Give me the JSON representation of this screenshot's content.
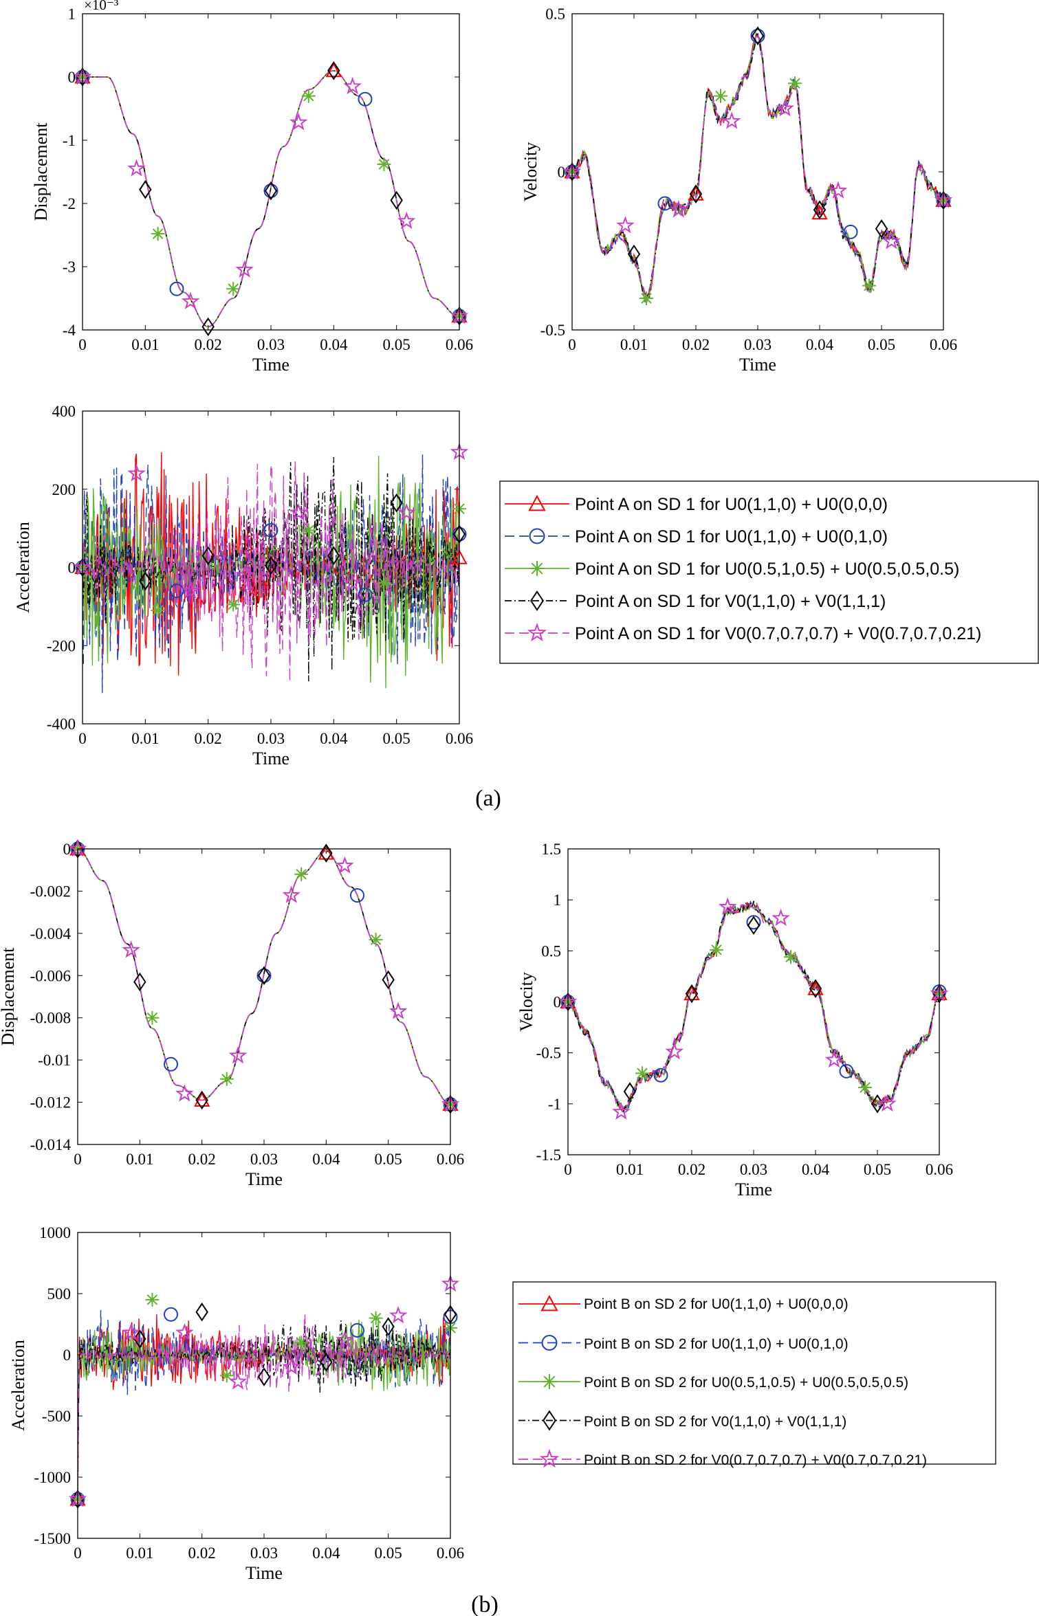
{
  "captions": {
    "a": "(a)",
    "b": "(b)"
  },
  "chart_data": [
    {
      "id": "a-disp",
      "type": "line",
      "xlabel": "Time",
      "ylabel": "Displacement",
      "xlim": [
        0,
        0.06
      ],
      "ylim": [
        -4,
        1
      ],
      "exponent": "×10⁻³",
      "xticks": [
        0,
        0.01,
        0.02,
        0.03,
        0.04,
        0.05,
        0.06
      ],
      "xtick_labels": [
        "0",
        "0.01",
        "0.02",
        "0.03",
        "0.04",
        "0.05",
        "0.06"
      ],
      "yticks": [
        -4,
        -3,
        -2,
        -1,
        0,
        1
      ],
      "ytick_labels": [
        "-4",
        "-3",
        "-2",
        "-1",
        "0",
        "1"
      ],
      "curve": {
        "kind": "smooth",
        "x": [
          0,
          0.004,
          0.008,
          0.012,
          0.016,
          0.02,
          0.024,
          0.028,
          0.032,
          0.036,
          0.04,
          0.044,
          0.048,
          0.052,
          0.056,
          0.06
        ],
        "y": [
          0,
          0,
          -0.9,
          -2.2,
          -3.4,
          -3.95,
          -3.5,
          -2.4,
          -1.1,
          -0.2,
          0.1,
          -0.3,
          -1.3,
          -2.6,
          -3.5,
          -3.8
        ]
      },
      "marker_points": [
        {
          "series": 0,
          "x": [
            0,
            0.04,
            0.06
          ],
          "y": [
            0,
            0.1,
            -3.78
          ]
        },
        {
          "series": 1,
          "x": [
            0,
            0.015,
            0.03,
            0.045,
            0.06
          ],
          "y": [
            0,
            -3.35,
            -1.8,
            -0.35,
            -3.78
          ]
        },
        {
          "series": 2,
          "x": [
            0,
            0.012,
            0.024,
            0.036,
            0.048,
            0.06
          ],
          "y": [
            0,
            -2.48,
            -3.35,
            -0.3,
            -1.38,
            -3.78
          ]
        },
        {
          "series": 3,
          "x": [
            0,
            0.01,
            0.02,
            0.03,
            0.04,
            0.05,
            0.06
          ],
          "y": [
            0,
            -1.78,
            -3.95,
            -1.8,
            0.1,
            -1.95,
            -3.78
          ]
        },
        {
          "series": 4,
          "x": [
            0,
            0.0086,
            0.0172,
            0.0258,
            0.0344,
            0.043,
            0.0516,
            0.06
          ],
          "y": [
            0,
            -1.45,
            -3.55,
            -3.05,
            -0.72,
            -0.15,
            -2.28,
            -3.78
          ]
        }
      ]
    },
    {
      "id": "a-vel",
      "type": "line",
      "xlabel": "Time",
      "ylabel": "Velocity",
      "xlim": [
        0,
        0.06
      ],
      "ylim": [
        -0.5,
        0.5
      ],
      "xticks": [
        0,
        0.01,
        0.02,
        0.03,
        0.04,
        0.05,
        0.06
      ],
      "xtick_labels": [
        "0",
        "0.01",
        "0.02",
        "0.03",
        "0.04",
        "0.05",
        "0.06"
      ],
      "yticks": [
        -0.5,
        0,
        0.5
      ],
      "ytick_labels": [
        "-0.5",
        "0",
        "0.5"
      ],
      "curve": {
        "kind": "jagged",
        "seed": 7,
        "noise": 0.018,
        "x": [
          0,
          0.002,
          0.005,
          0.008,
          0.01,
          0.012,
          0.015,
          0.018,
          0.02,
          0.022,
          0.024,
          0.026,
          0.028,
          0.03,
          0.032,
          0.034,
          0.036,
          0.038,
          0.04,
          0.042,
          0.044,
          0.046,
          0.048,
          0.05,
          0.052,
          0.054,
          0.056,
          0.058,
          0.06
        ],
        "y": [
          0,
          0.05,
          -0.25,
          -0.2,
          -0.28,
          -0.4,
          -0.1,
          -0.12,
          -0.07,
          0.25,
          0.16,
          0.22,
          0.3,
          0.43,
          0.18,
          0.2,
          0.28,
          -0.05,
          -0.12,
          -0.05,
          -0.2,
          -0.25,
          -0.37,
          -0.2,
          -0.2,
          -0.3,
          0.02,
          -0.05,
          -0.09
        ]
      },
      "marker_points": [
        {
          "series": 0,
          "x": [
            0,
            0.02,
            0.04,
            0.06
          ],
          "y": [
            0,
            -0.07,
            -0.13,
            -0.09
          ]
        },
        {
          "series": 1,
          "x": [
            0,
            0.015,
            0.03,
            0.045,
            0.06
          ],
          "y": [
            0,
            -0.1,
            0.43,
            -0.19,
            -0.09
          ]
        },
        {
          "series": 2,
          "x": [
            0,
            0.012,
            0.024,
            0.036,
            0.048,
            0.06
          ],
          "y": [
            0,
            -0.4,
            0.24,
            0.28,
            -0.36,
            -0.09
          ]
        },
        {
          "series": 3,
          "x": [
            0,
            0.01,
            0.02,
            0.03,
            0.04,
            0.05,
            0.06
          ],
          "y": [
            0,
            -0.26,
            -0.07,
            0.43,
            -0.12,
            -0.18,
            -0.09
          ]
        },
        {
          "series": 4,
          "x": [
            0,
            0.0086,
            0.0172,
            0.0258,
            0.0344,
            0.043,
            0.0516,
            0.06
          ],
          "y": [
            0,
            -0.17,
            -0.12,
            0.16,
            0.2,
            -0.06,
            -0.22,
            -0.09
          ]
        }
      ]
    },
    {
      "id": "a-acc",
      "type": "line",
      "xlabel": "Time",
      "ylabel": "Acceleration",
      "xlim": [
        0,
        0.06
      ],
      "ylim": [
        -400,
        400
      ],
      "xticks": [
        0,
        0.01,
        0.02,
        0.03,
        0.04,
        0.05,
        0.06
      ],
      "xtick_labels": [
        "0",
        "0.01",
        "0.02",
        "0.03",
        "0.04",
        "0.05",
        "0.06"
      ],
      "yticks": [
        -400,
        -200,
        0,
        200,
        400
      ],
      "ytick_labels": [
        "-400",
        "-200",
        "0",
        "200",
        "400"
      ],
      "curve": {
        "kind": "noise",
        "seed": 11,
        "amplitude": 320,
        "spread": 150,
        "start": 0
      },
      "marker_points": [
        {
          "series": 0,
          "x": [
            0,
            0.06
          ],
          "y": [
            0,
            25
          ]
        },
        {
          "series": 1,
          "x": [
            0,
            0.015,
            0.03,
            0.045,
            0.06
          ],
          "y": [
            0,
            -60,
            95,
            -70,
            85
          ]
        },
        {
          "series": 2,
          "x": [
            0,
            0.012,
            0.024,
            0.036,
            0.048,
            0.06
          ],
          "y": [
            0,
            -110,
            -95,
            95,
            -40,
            150
          ]
        },
        {
          "series": 3,
          "x": [
            0,
            0.01,
            0.02,
            0.03,
            0.04,
            0.05,
            0.06
          ],
          "y": [
            0,
            -35,
            30,
            5,
            30,
            165,
            85
          ]
        },
        {
          "series": 4,
          "x": [
            0,
            0.0086,
            0.0172,
            0.0258,
            0.0344,
            0.043,
            0.0516,
            0.06
          ],
          "y": [
            0,
            240,
            -60,
            -20,
            140,
            -40,
            140,
            295
          ]
        }
      ]
    },
    {
      "id": "b-disp",
      "type": "line",
      "xlabel": "Time",
      "ylabel": "Displacement",
      "xlim": [
        0,
        0.06
      ],
      "ylim": [
        -0.014,
        0
      ],
      "xticks": [
        0,
        0.01,
        0.02,
        0.03,
        0.04,
        0.05,
        0.06
      ],
      "xtick_labels": [
        "0",
        "0.01",
        "0.02",
        "0.03",
        "0.04",
        "0.05",
        "0.06"
      ],
      "yticks": [
        -0.014,
        -0.012,
        -0.01,
        -0.008,
        -0.006,
        -0.004,
        -0.002,
        0
      ],
      "ytick_labels": [
        "-0.014",
        "-0.012",
        "-0.01",
        "-0.008",
        "-0.006",
        "-0.004",
        "-0.002",
        "0"
      ],
      "curve": {
        "kind": "smooth",
        "x": [
          0,
          0.004,
          0.008,
          0.012,
          0.016,
          0.02,
          0.024,
          0.028,
          0.032,
          0.036,
          0.04,
          0.044,
          0.048,
          0.052,
          0.056,
          0.06
        ],
        "y": [
          0,
          -0.0015,
          -0.0045,
          -0.0085,
          -0.0112,
          -0.0119,
          -0.011,
          -0.0078,
          -0.004,
          -0.0012,
          -0.0001,
          -0.0018,
          -0.0045,
          -0.0082,
          -0.0108,
          -0.0121
        ]
      },
      "marker_points": [
        {
          "series": 0,
          "x": [
            0,
            0.02,
            0.04,
            0.06
          ],
          "y": [
            0,
            -0.0119,
            -0.0002,
            -0.0121
          ]
        },
        {
          "series": 1,
          "x": [
            0,
            0.015,
            0.03,
            0.045,
            0.06
          ],
          "y": [
            0,
            -0.0102,
            -0.006,
            -0.0022,
            -0.0121
          ]
        },
        {
          "series": 2,
          "x": [
            0,
            0.012,
            0.024,
            0.036,
            0.048,
            0.06
          ],
          "y": [
            0,
            -0.008,
            -0.0109,
            -0.0012,
            -0.0043,
            -0.0121
          ]
        },
        {
          "series": 3,
          "x": [
            0,
            0.01,
            0.02,
            0.03,
            0.04,
            0.05,
            0.06
          ],
          "y": [
            0,
            -0.0063,
            -0.0119,
            -0.006,
            -0.0002,
            -0.0062,
            -0.0121
          ]
        },
        {
          "series": 4,
          "x": [
            0,
            0.0086,
            0.0172,
            0.0258,
            0.0344,
            0.043,
            0.0516,
            0.06
          ],
          "y": [
            0,
            -0.0048,
            -0.0116,
            -0.0098,
            -0.0022,
            -0.0008,
            -0.0077,
            -0.0121
          ]
        }
      ]
    },
    {
      "id": "b-vel",
      "type": "line",
      "xlabel": "Time",
      "ylabel": "Velocity",
      "xlim": [
        0,
        0.06
      ],
      "ylim": [
        -1.5,
        1.5
      ],
      "xticks": [
        0,
        0.01,
        0.02,
        0.03,
        0.04,
        0.05,
        0.06
      ],
      "xtick_labels": [
        "0",
        "0.01",
        "0.02",
        "0.03",
        "0.04",
        "0.05",
        "0.06"
      ],
      "yticks": [
        -1.5,
        -1,
        -0.5,
        0,
        0.5,
        1,
        1.5
      ],
      "ytick_labels": [
        "-1.5",
        "-1",
        "-0.5",
        "0",
        "0.5",
        "1",
        "1.5"
      ],
      "curve": {
        "kind": "jagged",
        "seed": 3,
        "noise": 0.04,
        "x": [
          0,
          0.003,
          0.006,
          0.009,
          0.012,
          0.015,
          0.018,
          0.02,
          0.023,
          0.026,
          0.03,
          0.032,
          0.036,
          0.04,
          0.043,
          0.046,
          0.05,
          0.052,
          0.055,
          0.058,
          0.06
        ],
        "y": [
          0,
          -0.3,
          -0.8,
          -1.05,
          -0.75,
          -0.7,
          -0.35,
          0.1,
          0.45,
          0.9,
          0.95,
          0.8,
          0.45,
          0.15,
          -0.5,
          -0.7,
          -1.0,
          -0.95,
          -0.5,
          -0.35,
          0.1
        ]
      },
      "marker_points": [
        {
          "series": 0,
          "x": [
            0,
            0.02,
            0.04,
            0.06
          ],
          "y": [
            0,
            0.08,
            0.13,
            0.08
          ]
        },
        {
          "series": 1,
          "x": [
            0,
            0.015,
            0.03,
            0.045,
            0.06
          ],
          "y": [
            0,
            -0.72,
            0.78,
            -0.68,
            0.1
          ]
        },
        {
          "series": 2,
          "x": [
            0,
            0.012,
            0.024,
            0.036,
            0.048,
            0.06
          ],
          "y": [
            0,
            -0.7,
            0.51,
            0.44,
            -0.84,
            0.08
          ]
        },
        {
          "series": 3,
          "x": [
            0,
            0.01,
            0.02,
            0.03,
            0.04,
            0.05,
            0.06
          ],
          "y": [
            0,
            -0.88,
            0.08,
            0.75,
            0.13,
            -1.0,
            0.08
          ]
        },
        {
          "series": 4,
          "x": [
            0,
            0.0086,
            0.0172,
            0.0258,
            0.0344,
            0.043,
            0.0516,
            0.06
          ],
          "y": [
            0,
            -1.08,
            -0.49,
            0.93,
            0.82,
            -0.57,
            -1.0,
            0.08
          ]
        }
      ]
    },
    {
      "id": "b-acc",
      "type": "line",
      "xlabel": "Time",
      "ylabel": "Acceleration",
      "xlim": [
        0,
        0.06
      ],
      "ylim": [
        -1500,
        1000
      ],
      "xticks": [
        0,
        0.01,
        0.02,
        0.03,
        0.04,
        0.05,
        0.06
      ],
      "xtick_labels": [
        "0",
        "0.01",
        "0.02",
        "0.03",
        "0.04",
        "0.05",
        "0.06"
      ],
      "yticks": [
        -1500,
        -1000,
        -500,
        0,
        500,
        1000
      ],
      "ytick_labels": [
        "-1500",
        "-1000",
        "-500",
        "0",
        "500",
        "1000"
      ],
      "curve": {
        "kind": "noise",
        "seed": 5,
        "amplitude": 350,
        "spread": 200,
        "start": -1180
      },
      "marker_points": [
        {
          "series": 0,
          "x": [
            0
          ],
          "y": [
            -1180
          ]
        },
        {
          "series": 1,
          "x": [
            0,
            0.015,
            0.045,
            0.06
          ],
          "y": [
            -1180,
            330,
            200,
            310
          ]
        },
        {
          "series": 2,
          "x": [
            0,
            0.012,
            0.024,
            0.036,
            0.048,
            0.06
          ],
          "y": [
            -1180,
            450,
            -170,
            100,
            300,
            220
          ]
        },
        {
          "series": 3,
          "x": [
            0,
            0.01,
            0.02,
            0.03,
            0.04,
            0.05,
            0.06
          ],
          "y": [
            -1180,
            130,
            350,
            -180,
            -60,
            230,
            330
          ]
        },
        {
          "series": 4,
          "x": [
            0,
            0.0086,
            0.0172,
            0.0258,
            0.0344,
            0.043,
            0.0516,
            0.06
          ],
          "y": [
            -1180,
            180,
            180,
            -220,
            -100,
            120,
            320,
            580
          ]
        }
      ]
    }
  ],
  "legend_a": [
    "Point A on SD 1 for U0(1,1,0) + U0(0,0,0)",
    "Point A on SD 1 for U0(1,1,0) + U0(0,1,0)",
    "Point A on SD 1 for U0(0.5,1,0.5) + U0(0.5,0.5,0.5)",
    "Point A on SD 1 for V0(1,1,0) + V0(1,1,1)",
    "Point A on SD 1 for V0(0.7,0.7,0.7) + V0(0.7,0.7,0.21)"
  ],
  "legend_b": [
    "Point B on SD 2 for U0(1,1,0) + U0(0,0,0)",
    "Point B on SD 2 for U0(1,1,0) + U0(0,1,0)",
    "Point B on SD 2 for U0(0.5,1,0.5) + U0(0.5,0.5,0.5)",
    "Point B on SD 2 for V0(1,1,0) + V0(1,1,1)",
    "Point B on SD 2 for V0(0.7,0.7,0.7) + V0(0.7,0.7,0.21)"
  ],
  "series_styles": [
    {
      "color": "#ff0000",
      "marker": "triangle",
      "dash": ""
    },
    {
      "color": "#1f3fbf",
      "marker": "circle",
      "dash": "14,7"
    },
    {
      "color": "#5fb52a",
      "marker": "asterisk",
      "dash": ""
    },
    {
      "color": "#000000",
      "marker": "diamond",
      "dash": "10,4,2,4"
    },
    {
      "color": "#cc3ec8",
      "marker": "star",
      "dash": "14,7"
    }
  ]
}
